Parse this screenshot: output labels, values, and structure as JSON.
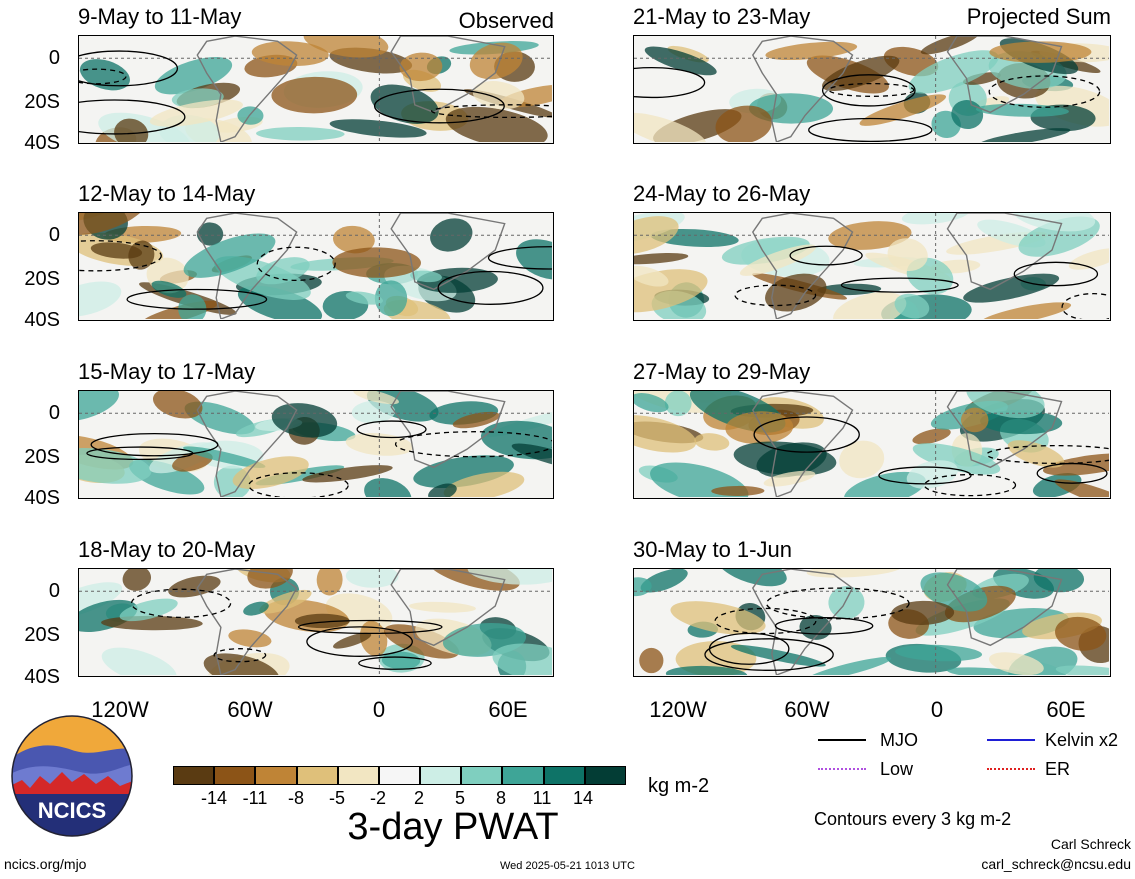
{
  "labels": {
    "observed": "Observed",
    "projected": "Projected Sum"
  },
  "panels_left": [
    {
      "title": "9-May to 11-May"
    },
    {
      "title": "12-May to 14-May"
    },
    {
      "title": "15-May to 17-May"
    },
    {
      "title": "18-May to 20-May"
    }
  ],
  "panels_right": [
    {
      "title": "21-May to 23-May"
    },
    {
      "title": "24-May to 26-May"
    },
    {
      "title": "27-May to 29-May"
    },
    {
      "title": "30-May to 1-Jun"
    }
  ],
  "y_ticks": [
    "0",
    "20S",
    "40S"
  ],
  "x_ticks": [
    "120W",
    "60W",
    "0",
    "60E"
  ],
  "colorbar": {
    "title": "3-day PWAT",
    "units": "kg m-2",
    "labels": [
      "-14",
      "-11",
      "-8",
      "-5",
      "-2",
      "2",
      "5",
      "8",
      "11",
      "14"
    ],
    "colors": [
      "#5a3b12",
      "#8c5417",
      "#bf8436",
      "#dfc07a",
      "#f2e6c2",
      "#f6f6f6",
      "#cdeee6",
      "#7fcfbf",
      "#3ea597",
      "#0e7367",
      "#033d35"
    ]
  },
  "legend": {
    "items": [
      {
        "label": "MJO",
        "color": "#000000"
      },
      {
        "label": "Kelvin x2",
        "color": "#1f1fd6"
      },
      {
        "label": "Low",
        "color": "#b050e0"
      },
      {
        "label": "ER",
        "color": "#e02020"
      }
    ],
    "contours": "Contours every 3 kg m-2"
  },
  "logo": {
    "text": "NCICS"
  },
  "footer": {
    "url": "ncics.org/mjo",
    "timestamp": "Wed 2025-05-21 1013 UTC",
    "author": "Carl Schreck",
    "email": "carl_schreck@ncsu.edu"
  }
}
